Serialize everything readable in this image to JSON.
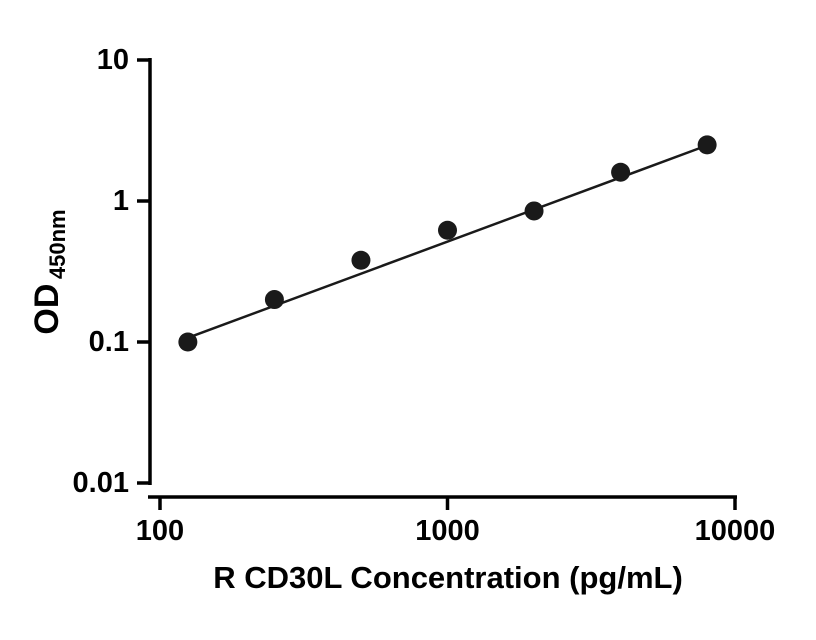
{
  "chart_data": {
    "type": "scatter",
    "title": "",
    "xlabel": "R CD30L Concentration (pg/mL)",
    "ylabel": "OD450nm",
    "ylabel_main": "OD",
    "ylabel_sub": "450nm",
    "xscale": "log",
    "yscale": "log",
    "xlim": [
      100,
      10000
    ],
    "ylim": [
      0.01,
      10
    ],
    "x_ticks": [
      100,
      1000,
      10000
    ],
    "x_tick_labels": [
      "100",
      "1000",
      "10000"
    ],
    "y_ticks": [
      10,
      1,
      0.1,
      0.01
    ],
    "y_tick_labels": [
      "10",
      "1",
      "0.1",
      "0.01"
    ],
    "points": {
      "x": [
        125,
        250,
        500,
        1000,
        2000,
        4000,
        8000
      ],
      "y": [
        0.1,
        0.2,
        0.38,
        0.62,
        0.85,
        1.6,
        2.5
      ]
    },
    "fit_line": {
      "x": [
        125,
        8000
      ],
      "y": [
        0.107,
        2.48
      ]
    },
    "grid": false,
    "legend": null,
    "marker_color": "#1a1a1a",
    "line_color": "#1a1a1a",
    "axis_color": "#000000"
  }
}
